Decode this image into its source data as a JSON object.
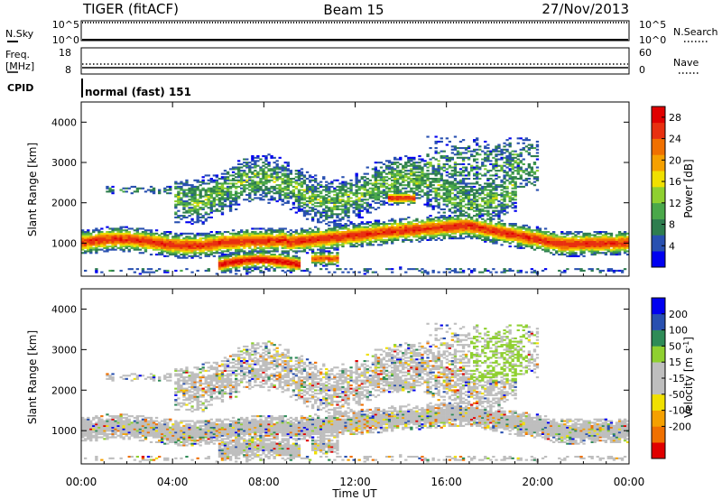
{
  "header": {
    "station": "TIGER (fitACF)",
    "beam": "Beam 15",
    "date": "27/Nov/2013"
  },
  "top_panels": {
    "nsky": {
      "label": "N.Sky",
      "tick_hi": "10^5",
      "tick_lo": "10^0",
      "right_label": "N.Search"
    },
    "freq": {
      "label_1": "Freq.",
      "label_2": "[MHz]",
      "tick_hi": "18",
      "tick_lo": "8",
      "right_hi": "60",
      "right_lo": "0",
      "right_label": "Nave"
    },
    "cpid": {
      "label": "CPID",
      "text": "normal (fast) 151"
    }
  },
  "colors": {
    "power_scale": [
      "#0000f0",
      "#2850b0",
      "#2e7d4f",
      "#4aa84a",
      "#8fd030",
      "#f0e000",
      "#f5a000",
      "#f07000",
      "#e83010",
      "#e00000"
    ],
    "velocity_scale": [
      "#e00000",
      "#f07000",
      "#f5a000",
      "#f0e000",
      "#bebebe",
      "#bebebe",
      "#8fd030",
      "#2e8b57",
      "#2850b0",
      "#0000f0"
    ]
  },
  "chart_data": [
    {
      "type": "heatmap",
      "name": "power",
      "ylabel": "Slant Range [km]",
      "y_ticks": [
        "1000",
        "2000",
        "3000",
        "4000"
      ],
      "ylim": [
        180,
        4500
      ],
      "xlim": [
        0,
        24
      ],
      "colorbar": {
        "label": "Power [dB]",
        "ticks": [
          "4",
          "8",
          "12",
          "16",
          "20",
          "24",
          "28"
        ],
        "range": [
          0,
          30
        ]
      },
      "features": [
        {
          "label": "main band",
          "range_km": [
            700,
            1300
          ],
          "from": "00:00",
          "to": "24:00",
          "peak_dB": 28
        },
        {
          "label": "near range",
          "range_km": [
            200,
            600
          ],
          "from": "06:00",
          "to": "09:30",
          "peak_dB": 28
        },
        {
          "label": "far patch",
          "range_km": [
            2000,
            2200
          ],
          "from": "13:30",
          "to": "14:30",
          "peak_dB": 26
        }
      ]
    },
    {
      "type": "heatmap",
      "name": "velocity",
      "ylabel": "Slant Range [km]",
      "xlabel": "Time UT",
      "y_ticks": [
        "1000",
        "2000",
        "3000",
        "4000"
      ],
      "x_ticks": [
        "00:00",
        "04:00",
        "08:00",
        "12:00",
        "16:00",
        "20:00",
        "00:00"
      ],
      "ylim": [
        180,
        4500
      ],
      "xlim": [
        0,
        24
      ],
      "colorbar": {
        "label": "Velocity [m s^-1]",
        "ticks": [
          "200",
          "100",
          "50",
          "15",
          "-15",
          "-50",
          "-100",
          "-200"
        ],
        "range": [
          -250,
          250
        ]
      }
    }
  ]
}
